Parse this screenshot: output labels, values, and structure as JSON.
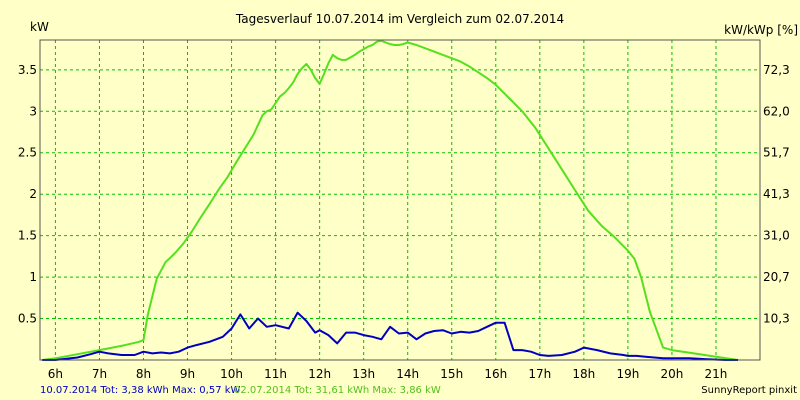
{
  "chart_data": {
    "type": "line",
    "title": "Tagesverlauf 10.07.2014 im Vergleich zum 02.07.2014",
    "ylabel_left": "kW",
    "ylabel_right": "kW/kWp [%]",
    "xlim": [
      5.65,
      22.0
    ],
    "ylim_left": [
      0,
      3.86
    ],
    "y_ticks_left": [
      "0.5",
      "1",
      "1.5",
      "2",
      "2.5",
      "3",
      "3.5"
    ],
    "y_ticks_right": [
      "10,3",
      "20,7",
      "31,0",
      "41,3",
      "51,7",
      "62,0",
      "72,3"
    ],
    "x_ticks": [
      "6h",
      "7h",
      "8h",
      "9h",
      "10h",
      "11h",
      "12h",
      "13h",
      "14h",
      "15h",
      "16h",
      "17h",
      "18h",
      "19h",
      "20h",
      "21h"
    ],
    "grid": true,
    "colors": {
      "background": "#FFFFC8",
      "grid": "#00C000",
      "blue": "#0000C0",
      "green": "#55E01D"
    },
    "series": [
      {
        "name": "10.07.2014",
        "color": "#0000C0",
        "x": [
          5.7,
          6.0,
          6.5,
          6.8,
          7.0,
          7.2,
          7.5,
          7.8,
          8.0,
          8.2,
          8.4,
          8.6,
          8.8,
          9.0,
          9.2,
          9.5,
          9.8,
          10.0,
          10.2,
          10.4,
          10.6,
          10.8,
          11.0,
          11.3,
          11.5,
          11.7,
          11.9,
          12.0,
          12.2,
          12.4,
          12.6,
          12.8,
          13.0,
          13.2,
          13.4,
          13.6,
          13.8,
          14.0,
          14.2,
          14.4,
          14.6,
          14.8,
          15.0,
          15.2,
          15.4,
          15.6,
          15.8,
          16.0,
          16.2,
          16.4,
          16.6,
          16.8,
          17.0,
          17.2,
          17.5,
          17.8,
          18.0,
          18.3,
          18.6,
          18.9,
          19.0,
          19.2,
          19.4,
          19.6,
          19.8,
          20.0,
          20.4,
          20.8,
          21.2,
          21.5
        ],
        "values": [
          0.0,
          0.0,
          0.03,
          0.07,
          0.1,
          0.08,
          0.06,
          0.06,
          0.1,
          0.08,
          0.09,
          0.08,
          0.1,
          0.15,
          0.18,
          0.22,
          0.28,
          0.38,
          0.55,
          0.38,
          0.5,
          0.4,
          0.42,
          0.38,
          0.57,
          0.47,
          0.33,
          0.36,
          0.3,
          0.2,
          0.33,
          0.33,
          0.3,
          0.28,
          0.25,
          0.4,
          0.32,
          0.33,
          0.25,
          0.32,
          0.35,
          0.36,
          0.32,
          0.34,
          0.33,
          0.35,
          0.4,
          0.45,
          0.45,
          0.12,
          0.12,
          0.1,
          0.06,
          0.05,
          0.06,
          0.1,
          0.15,
          0.12,
          0.08,
          0.06,
          0.05,
          0.05,
          0.04,
          0.03,
          0.02,
          0.02,
          0.02,
          0.01,
          0.0,
          0.0
        ]
      },
      {
        "name": "02.07.2014",
        "color": "#55E01D",
        "x": [
          5.7,
          6.0,
          6.5,
          7.0,
          7.5,
          7.9,
          8.0,
          8.1,
          8.3,
          8.5,
          8.7,
          8.9,
          9.1,
          9.3,
          9.5,
          9.7,
          9.9,
          10.1,
          10.3,
          10.5,
          10.7,
          10.8,
          10.9,
          11.0,
          11.1,
          11.2,
          11.3,
          11.4,
          11.5,
          11.6,
          11.7,
          11.8,
          11.9,
          12.0,
          12.1,
          12.2,
          12.3,
          12.4,
          12.5,
          12.6,
          12.7,
          12.8,
          12.9,
          13.0,
          13.1,
          13.2,
          13.3,
          13.4,
          13.5,
          13.6,
          13.7,
          13.8,
          13.9,
          14.0,
          14.2,
          14.4,
          14.6,
          14.8,
          15.0,
          15.2,
          15.4,
          15.6,
          15.8,
          16.0,
          16.3,
          16.6,
          16.9,
          17.2,
          17.5,
          17.8,
          18.1,
          18.4,
          18.7,
          19.0,
          19.15,
          19.3,
          19.5,
          19.8,
          20.0,
          20.5,
          21.0,
          21.5
        ],
        "values": [
          0.0,
          0.02,
          0.07,
          0.12,
          0.17,
          0.22,
          0.24,
          0.55,
          0.98,
          1.18,
          1.28,
          1.4,
          1.55,
          1.72,
          1.88,
          2.05,
          2.2,
          2.38,
          2.55,
          2.72,
          2.95,
          3.0,
          3.02,
          3.1,
          3.18,
          3.22,
          3.28,
          3.35,
          3.45,
          3.52,
          3.57,
          3.5,
          3.4,
          3.33,
          3.45,
          3.58,
          3.68,
          3.64,
          3.62,
          3.62,
          3.65,
          3.68,
          3.72,
          3.75,
          3.78,
          3.8,
          3.84,
          3.85,
          3.83,
          3.81,
          3.8,
          3.8,
          3.81,
          3.83,
          3.8,
          3.76,
          3.72,
          3.68,
          3.64,
          3.6,
          3.54,
          3.47,
          3.4,
          3.32,
          3.16,
          3.0,
          2.8,
          2.55,
          2.3,
          2.05,
          1.8,
          1.62,
          1.48,
          1.32,
          1.22,
          1.0,
          0.58,
          0.15,
          0.12,
          0.08,
          0.04,
          0.0
        ]
      }
    ]
  },
  "footer": {
    "blue_stats": "10.07.2014 Tot: 3,38 kWh Max: 0,57 kW",
    "green_stats": "02.07.2014 Tot: 31,61 kWh Max: 3,86 kW",
    "credit": "SunnyReport pinxit"
  }
}
